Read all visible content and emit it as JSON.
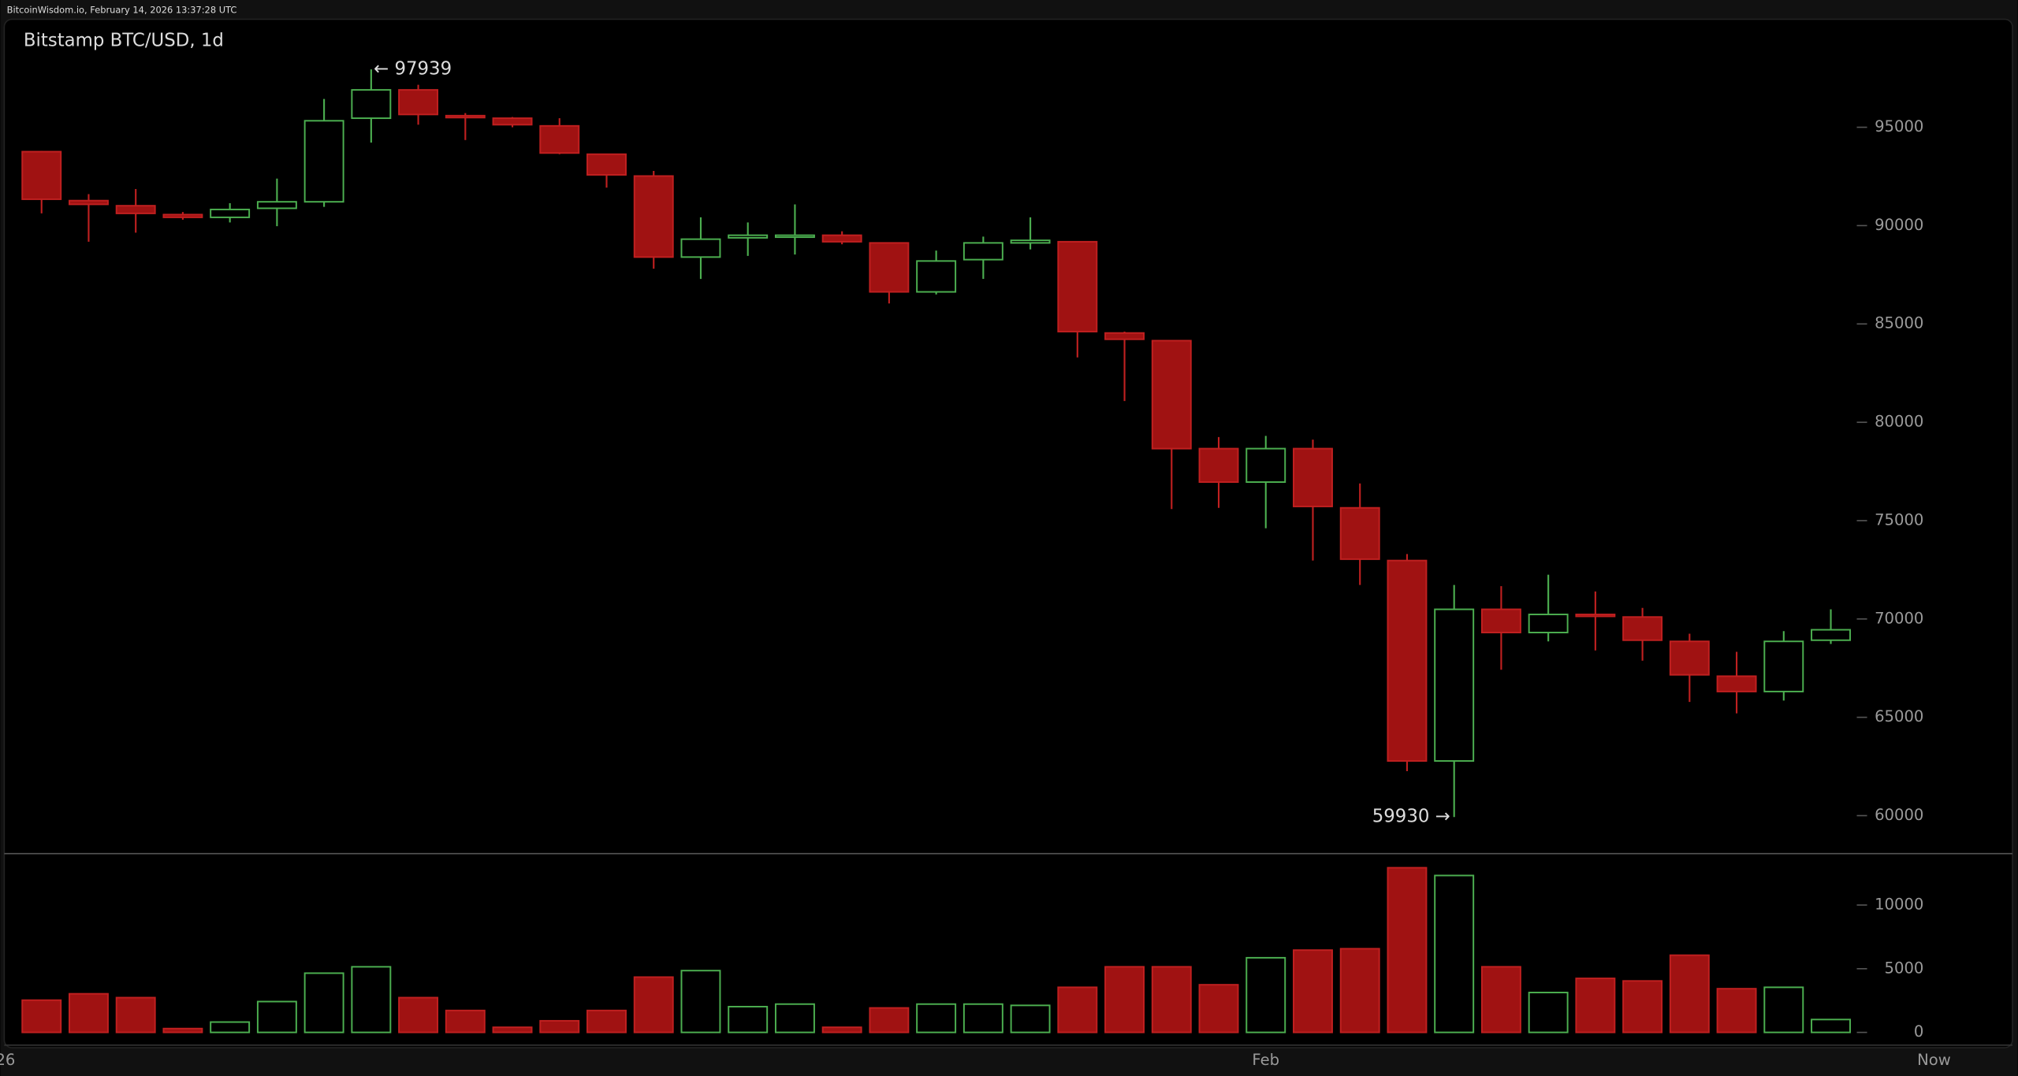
{
  "header": "BitcoinWisdom.io, February 14, 2026 13:37:28 UTC",
  "chart_data": {
    "type": "candlestick",
    "title": "Bitstamp BTC/USD, 1d",
    "categories": [
      null,
      null,
      null,
      null,
      null,
      null,
      null,
      null,
      null,
      null,
      null,
      null,
      null,
      null,
      null,
      null,
      null,
      null,
      null,
      null,
      null,
      null,
      null,
      null,
      null,
      null,
      "Feb",
      null,
      null,
      null,
      null,
      null,
      null,
      null,
      null,
      null,
      null,
      null,
      null
    ],
    "edge_labels": [
      "'26",
      "Now"
    ],
    "open": [
      93760,
      91270,
      91010,
      90560,
      90420,
      90880,
      91210,
      95460,
      96900,
      95590,
      95460,
      95070,
      93630,
      92520,
      88400,
      89380,
      89450,
      89510,
      89120,
      86630,
      88270,
      89120,
      89180,
      84540,
      84150,
      78660,
      76960,
      78660,
      75650,
      72970,
      62780,
      70490,
      69310,
      70230,
      70100,
      68860,
      67090,
      66310,
      68920
    ],
    "high": [
      93800,
      91600,
      91860,
      90690,
      91140,
      92390,
      96440,
      97939,
      97160,
      95720,
      95520,
      95460,
      93630,
      92780,
      90420,
      90160,
      91080,
      89710,
      89120,
      88730,
      89440,
      90420,
      89180,
      84610,
      84150,
      79250,
      79310,
      79120,
      76890,
      73300,
      71730,
      71670,
      72250,
      71400,
      70560,
      69250,
      68330,
      69380,
      70490
    ],
    "low": [
      90620,
      89180,
      89640,
      90300,
      90160,
      89970,
      90950,
      94220,
      95130,
      94350,
      95000,
      93630,
      91930,
      87810,
      87290,
      88460,
      88530,
      89050,
      86040,
      86500,
      87290,
      88790,
      83300,
      81080,
      75590,
      75650,
      74610,
      72970,
      71730,
      62260,
      59930,
      67420,
      68860,
      68400,
      67880,
      65780,
      65200,
      65850,
      68730
    ],
    "close": [
      91340,
      91080,
      90620,
      90420,
      90820,
      91210,
      95330,
      96900,
      95650,
      95520,
      95130,
      93690,
      92580,
      88400,
      89310,
      89510,
      89510,
      89180,
      86630,
      88200,
      89120,
      89250,
      84610,
      84220,
      78660,
      76960,
      78660,
      75720,
      73040,
      62780,
      70490,
      69310,
      70230,
      70160,
      68920,
      67160,
      66310,
      68860,
      69450
    ],
    "volume": [
      2530,
      3030,
      2730,
      300,
      810,
      2420,
      4650,
      5150,
      2730,
      1720,
      400,
      910,
      1720,
      4340,
      4850,
      2020,
      2220,
      400,
      1920,
      2220,
      2220,
      2120,
      3540,
      5150,
      5150,
      3740,
      5860,
      6460,
      6570,
      12930,
      12320,
      5150,
      3130,
      4240,
      4040,
      6060,
      3430,
      3540,
      1010
    ],
    "up_color": "#4caf50",
    "down_color": "#a01212",
    "ylim": [
      58070,
      100490
    ],
    "yticks": [
      60000,
      65000,
      70000,
      75000,
      80000,
      85000,
      90000,
      95000
    ],
    "volume_ylim": [
      -700,
      14040
    ],
    "volume_yticks": [
      0,
      5000,
      10000
    ],
    "annotations": [
      {
        "text": "← 97939"
      },
      {
        "text": "59930 →"
      }
    ]
  }
}
